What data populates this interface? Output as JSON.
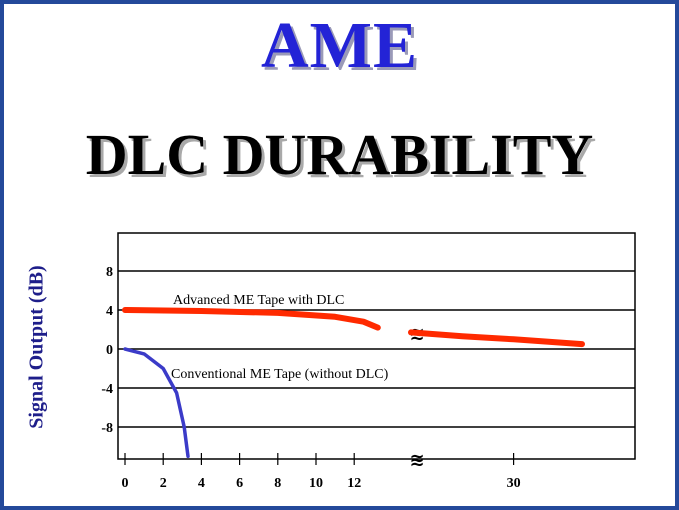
{
  "title": "AME",
  "subtitle": "DLC DURABILITY",
  "colors": {
    "frame": "#24499a",
    "title": "#2323d6",
    "series_dlc": "#ff2a00",
    "series_conventional": "#3b3bc8",
    "grid": "#000000"
  },
  "chart_data": {
    "type": "line",
    "title": "",
    "xlabel": "",
    "ylabel": "Signal Output (dB)",
    "yticks": [
      "8",
      "4",
      "0",
      "-4",
      "-8"
    ],
    "xticks": [
      "0",
      "2",
      "4",
      "6",
      "8",
      "10",
      "12",
      "30"
    ],
    "ylim": [
      -11,
      11
    ],
    "xlim": [
      0,
      40
    ],
    "axis_break_marks": [
      "≋",
      "≋"
    ],
    "grid": "horizontal",
    "series": [
      {
        "name": "Advanced ME Tape with DLC",
        "points": [
          [
            0,
            4
          ],
          [
            4,
            3.9
          ],
          [
            8,
            3.7
          ],
          [
            11,
            3.3
          ],
          [
            13,
            2.8
          ],
          [
            14.5,
            2.2
          ]
        ],
        "points_after_break": [
          [
            18,
            1.7
          ],
          [
            24,
            1.3
          ],
          [
            30,
            1.0
          ],
          [
            38,
            0.5
          ]
        ]
      },
      {
        "name": "Conventional ME Tape (without DLC)",
        "points": [
          [
            0,
            0
          ],
          [
            1,
            -0.5
          ],
          [
            2,
            -2
          ],
          [
            2.7,
            -4.5
          ],
          [
            3.1,
            -8
          ],
          [
            3.3,
            -11
          ]
        ]
      }
    ]
  }
}
